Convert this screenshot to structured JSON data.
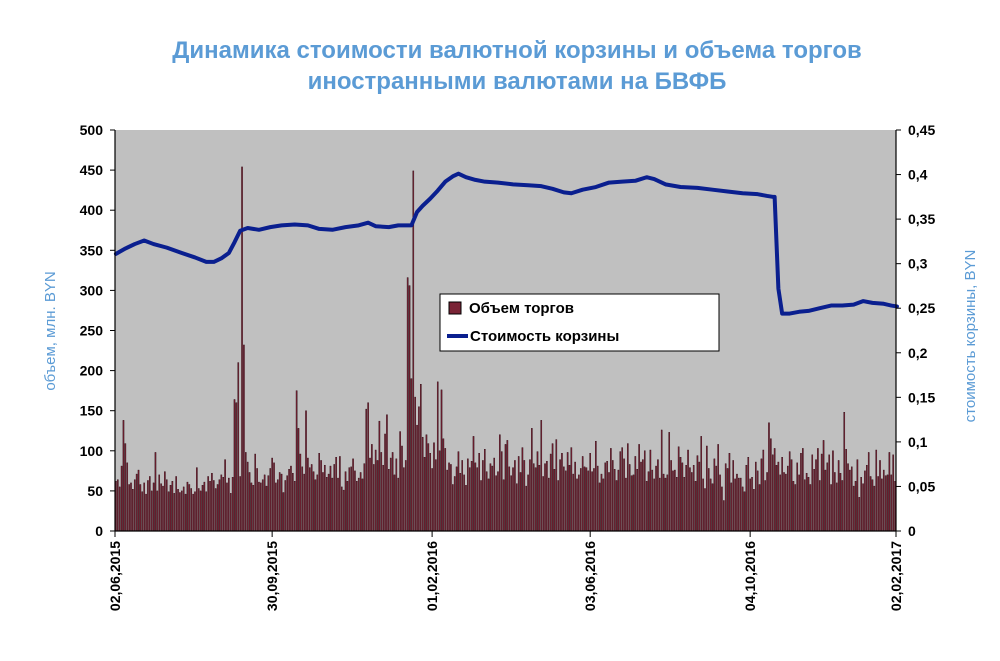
{
  "chart_data": {
    "type": "bar+line",
    "title_lines": [
      "Динамика стоимости валютной корзины и объема торгов",
      "иностранными валютами на БВФБ"
    ],
    "ylabel_left": "объем, млн. BYN",
    "ylabel_right": "стоимость  корзины, BYN",
    "ylim_left": [
      0,
      500
    ],
    "ylim_right": [
      0,
      0.45
    ],
    "left_ticks": [
      "0",
      "50",
      "100",
      "150",
      "200",
      "250",
      "300",
      "350",
      "400",
      "450",
      "500"
    ],
    "right_ticks": [
      "0",
      "0,05",
      "0,1",
      "0,15",
      "0,2",
      "0,25",
      "0,3",
      "0,35",
      "0,4",
      "0,45"
    ],
    "x_range": [
      "02.06.2015",
      "02.02.2017"
    ],
    "x_tick_labels": [
      "02,06,2015",
      "30,09,2015",
      "01,02,2016",
      "03,06,2016",
      "04,10,2016",
      "02,02,2017"
    ],
    "grid": false,
    "legend_position": "center",
    "colors": {
      "bars": "#7a2436",
      "bar_outline": "#2a0810",
      "line": "#0a1f8f",
      "plot_bg": "#c0c0c0",
      "title": "#5b9bd5",
      "axis_title": "#5b9bd5"
    },
    "series": [
      {
        "name": "Объем торгов",
        "kind": "bar",
        "axis": "left",
        "values": [
          62,
          64,
          55,
          81,
          138,
          109,
          85,
          58,
          60,
          52,
          64,
          71,
          76,
          58,
          49,
          60,
          46,
          63,
          68,
          50,
          60,
          98,
          50,
          70,
          59,
          56,
          74,
          64,
          49,
          57,
          62,
          47,
          68,
          52,
          48,
          50,
          55,
          46,
          61,
          58,
          53,
          46,
          49,
          79,
          53,
          50,
          57,
          61,
          49,
          68,
          62,
          72,
          63,
          53,
          58,
          64,
          70,
          67,
          89,
          60,
          66,
          47,
          67,
          164,
          160,
          210,
          68,
          454,
          232,
          98,
          86,
          73,
          60,
          57,
          96,
          78,
          61,
          60,
          64,
          70,
          56,
          69,
          78,
          91,
          85,
          60,
          64,
          73,
          71,
          48,
          63,
          69,
          77,
          81,
          72,
          62,
          175,
          128,
          96,
          80,
          71,
          150,
          91,
          79,
          83,
          74,
          64,
          70,
          97,
          88,
          73,
          82,
          67,
          71,
          81,
          66,
          83,
          92,
          66,
          93,
          55,
          51,
          74,
          62,
          79,
          80,
          90,
          75,
          62,
          66,
          73,
          65,
          84,
          152,
          160,
          91,
          108,
          83,
          101,
          88,
          137,
          98,
          82,
          121,
          145,
          77,
          91,
          98,
          70,
          90,
          66,
          124,
          106,
          79,
          88,
          316,
          306,
          190,
          449,
          167,
          132,
          155,
          183,
          117,
          92,
          120,
          109,
          97,
          78,
          110,
          89,
          186,
          100,
          176,
          115,
          103,
          76,
          85,
          83,
          58,
          68,
          80,
          99,
          72,
          88,
          70,
          57,
          90,
          79,
          87,
          118,
          85,
          79,
          97,
          63,
          88,
          102,
          74,
          65,
          84,
          81,
          91,
          69,
          74,
          120,
          99,
          64,
          108,
          113,
          80,
          69,
          79,
          88,
          59,
          93,
          73,
          104,
          88,
          56,
          70,
          89,
          128,
          84,
          79,
          99,
          82,
          138,
          68,
          84,
          87,
          66,
          96,
          109,
          77,
          114,
          63,
          89,
          97,
          80,
          75,
          98,
          82,
          104,
          71,
          86,
          65,
          70,
          78,
          93,
          80,
          79,
          75,
          97,
          74,
          78,
          112,
          81,
          60,
          71,
          65,
          85,
          87,
          73,
          103,
          88,
          77,
          63,
          76,
          99,
          104,
          90,
          66,
          109,
          83,
          69,
          70,
          93,
          77,
          108,
          86,
          89,
          100,
          62,
          74,
          101,
          76,
          65,
          81,
          89,
          66,
          126,
          71,
          66,
          70,
          123,
          88,
          75,
          76,
          67,
          105,
          92,
          85,
          67,
          82,
          101,
          79,
          73,
          82,
          62,
          94,
          86,
          118,
          65,
          53,
          106,
          78,
          65,
          59,
          90,
          81,
          108,
          70,
          55,
          38,
          84,
          78,
          97,
          60,
          88,
          65,
          71,
          66,
          66,
          55,
          49,
          82,
          92,
          65,
          67,
          52,
          86,
          75,
          58,
          90,
          101,
          63,
          73,
          135,
          115,
          95,
          103,
          82,
          86,
          70,
          92,
          73,
          71,
          81,
          99,
          89,
          62,
          58,
          85,
          70,
          97,
          103,
          64,
          72,
          67,
          58,
          95,
          77,
          89,
          103,
          63,
          96,
          113,
          76,
          85,
          95,
          58,
          100,
          73,
          60,
          88,
          72,
          63,
          148,
          102,
          84,
          76,
          80,
          56,
          62,
          89,
          42,
          67,
          59,
          75,
          82,
          98,
          68,
          64,
          56,
          101,
          68,
          88,
          65,
          76,
          69,
          70,
          98,
          70,
          95,
          62
        ]
      },
      {
        "name": "Стоимость  корзины",
        "kind": "line",
        "axis": "right",
        "points": [
          [
            0,
            0.311
          ],
          [
            5,
            0.317
          ],
          [
            10,
            0.322
          ],
          [
            15,
            0.326
          ],
          [
            20,
            0.322
          ],
          [
            27,
            0.318
          ],
          [
            35,
            0.312
          ],
          [
            42,
            0.307
          ],
          [
            48,
            0.302
          ],
          [
            52,
            0.302
          ],
          [
            56,
            0.306
          ],
          [
            60,
            0.312
          ],
          [
            63,
            0.324
          ],
          [
            66,
            0.337
          ],
          [
            70,
            0.34
          ],
          [
            76,
            0.338
          ],
          [
            82,
            0.341
          ],
          [
            88,
            0.343
          ],
          [
            95,
            0.344
          ],
          [
            102,
            0.343
          ],
          [
            108,
            0.339
          ],
          [
            115,
            0.338
          ],
          [
            122,
            0.341
          ],
          [
            129,
            0.343
          ],
          [
            134,
            0.346
          ],
          [
            138,
            0.342
          ],
          [
            145,
            0.341
          ],
          [
            150,
            0.343
          ],
          [
            154,
            0.343
          ],
          [
            157,
            0.343
          ],
          [
            160,
            0.358
          ],
          [
            163,
            0.365
          ],
          [
            167,
            0.373
          ],
          [
            171,
            0.382
          ],
          [
            175,
            0.392
          ],
          [
            179,
            0.398
          ],
          [
            182,
            0.401
          ],
          [
            186,
            0.397
          ],
          [
            191,
            0.394
          ],
          [
            196,
            0.392
          ],
          [
            203,
            0.391
          ],
          [
            211,
            0.389
          ],
          [
            219,
            0.388
          ],
          [
            226,
            0.387
          ],
          [
            232,
            0.384
          ],
          [
            238,
            0.38
          ],
          [
            242,
            0.379
          ],
          [
            248,
            0.383
          ],
          [
            255,
            0.386
          ],
          [
            262,
            0.391
          ],
          [
            269,
            0.392
          ],
          [
            276,
            0.393
          ],
          [
            282,
            0.397
          ],
          [
            286,
            0.395
          ],
          [
            292,
            0.389
          ],
          [
            300,
            0.386
          ],
          [
            309,
            0.385
          ],
          [
            317,
            0.383
          ],
          [
            325,
            0.381
          ],
          [
            333,
            0.379
          ],
          [
            341,
            0.378
          ],
          [
            346,
            0.376
          ],
          [
            349,
            0.375
          ],
          [
            350,
            0.375
          ],
          [
            352,
            0.272
          ],
          [
            354,
            0.244
          ],
          [
            358,
            0.244
          ],
          [
            363,
            0.246
          ],
          [
            368,
            0.247
          ],
          [
            374,
            0.25
          ],
          [
            380,
            0.253
          ],
          [
            386,
            0.253
          ],
          [
            392,
            0.254
          ],
          [
            397,
            0.258
          ],
          [
            402,
            0.256
          ],
          [
            408,
            0.255
          ],
          [
            412,
            0.253
          ],
          [
            415,
            0.252
          ]
        ]
      }
    ]
  }
}
